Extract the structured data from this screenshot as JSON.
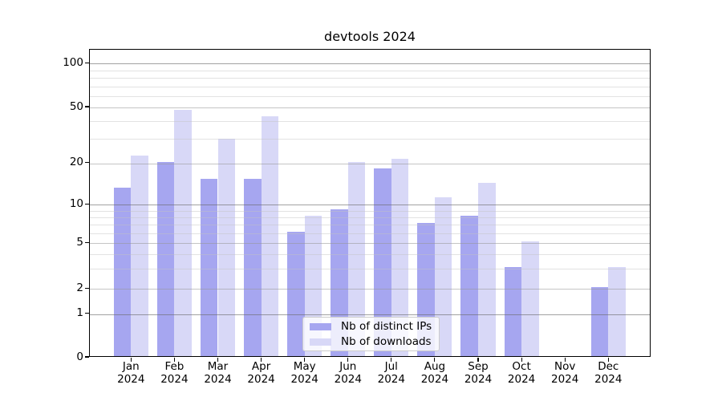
{
  "figure": {
    "title": "devtools 2024",
    "background": "#ffffff"
  },
  "chart_data": {
    "type": "bar",
    "title": "devtools 2024",
    "months": [
      "Jan",
      "Feb",
      "Mar",
      "Apr",
      "May",
      "Jun",
      "Jul",
      "Aug",
      "Sep",
      "Oct",
      "Nov",
      "Dec"
    ],
    "year": "2024",
    "series": [
      {
        "name": "Nb of distinct IPs",
        "color": "#a6a6f0",
        "values": [
          13,
          20,
          15,
          15,
          6,
          9,
          18,
          7,
          8,
          3,
          0,
          2
        ]
      },
      {
        "name": "Nb of downloads",
        "color": "#d8d8f7",
        "values": [
          22,
          47,
          29,
          42,
          8,
          20,
          21,
          11,
          14,
          5,
          0,
          3
        ]
      }
    ],
    "yscale": "symlog",
    "yticks": [
      0,
      1,
      2,
      5,
      10,
      20,
      50,
      100
    ],
    "yticks_minor": [
      3,
      4,
      6,
      7,
      8,
      9,
      30,
      40,
      60,
      70,
      80,
      90
    ],
    "ylim": [
      0,
      120
    ],
    "grid": true,
    "legend": {
      "position": "lower center",
      "items": [
        "Nb of distinct IPs",
        "Nb of downloads"
      ]
    }
  }
}
